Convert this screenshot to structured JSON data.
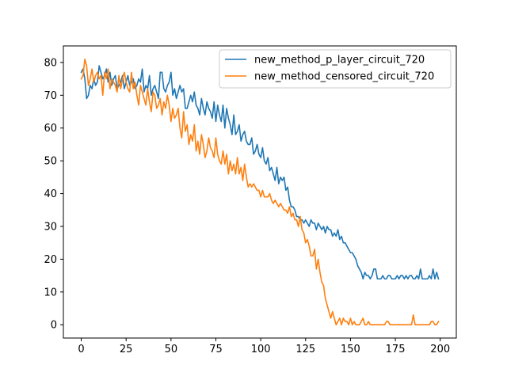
{
  "chart_data": {
    "type": "line",
    "title": "",
    "xlabel": "",
    "ylabel": "",
    "xlim": [
      -9.95,
      208.95
    ],
    "ylim": [
      -4.05,
      85.05
    ],
    "xticks": [
      0,
      25,
      50,
      75,
      100,
      125,
      150,
      175,
      200
    ],
    "yticks": [
      0,
      10,
      20,
      30,
      40,
      50,
      60,
      70,
      80
    ],
    "grid": false,
    "legend_position": "top-right",
    "series": [
      {
        "name": "new_method_p_layer_circuit_720",
        "color": "#1f77b4",
        "x": [
          0,
          1,
          2,
          3,
          4,
          5,
          6,
          7,
          8,
          9,
          10,
          11,
          12,
          13,
          14,
          15,
          16,
          17,
          18,
          19,
          20,
          21,
          22,
          23,
          24,
          25,
          26,
          27,
          28,
          29,
          30,
          31,
          32,
          33,
          34,
          35,
          36,
          37,
          38,
          39,
          40,
          41,
          42,
          43,
          44,
          45,
          46,
          47,
          48,
          49,
          50,
          51,
          52,
          53,
          54,
          55,
          56,
          57,
          58,
          59,
          60,
          61,
          62,
          63,
          64,
          65,
          66,
          67,
          68,
          69,
          70,
          71,
          72,
          73,
          74,
          75,
          76,
          77,
          78,
          79,
          80,
          81,
          82,
          83,
          84,
          85,
          86,
          87,
          88,
          89,
          90,
          91,
          92,
          93,
          94,
          95,
          96,
          97,
          98,
          99,
          100,
          101,
          102,
          103,
          104,
          105,
          106,
          107,
          108,
          109,
          110,
          111,
          112,
          113,
          114,
          115,
          116,
          117,
          118,
          119,
          120,
          121,
          122,
          123,
          124,
          125,
          126,
          127,
          128,
          129,
          130,
          131,
          132,
          133,
          134,
          135,
          136,
          137,
          138,
          139,
          140,
          141,
          142,
          143,
          144,
          145,
          146,
          147,
          148,
          149,
          150,
          151,
          152,
          153,
          154,
          155,
          156,
          157,
          158,
          159,
          160,
          161,
          162,
          163,
          164,
          165,
          166,
          167,
          168,
          169,
          170,
          171,
          172,
          173,
          174,
          175,
          176,
          177,
          178,
          179,
          180,
          181,
          182,
          183,
          184,
          185,
          186,
          187,
          188,
          189,
          190,
          191,
          192,
          193,
          194,
          195,
          196,
          197,
          198,
          199
        ],
        "y": [
          77,
          78,
          75,
          69,
          70,
          73,
          72,
          75,
          73,
          74,
          79,
          77,
          75,
          76,
          78,
          74,
          77,
          73,
          75,
          76,
          72,
          73,
          74,
          76,
          72,
          74,
          76,
          73,
          74,
          75,
          72,
          73,
          75,
          74,
          78,
          71,
          73,
          72,
          76,
          70,
          72,
          73,
          71,
          69,
          77,
          77,
          72,
          71,
          73,
          74,
          77,
          70,
          72,
          69,
          71,
          73,
          71,
          72,
          66,
          66,
          68,
          70,
          68,
          71,
          67,
          66,
          64,
          69,
          66,
          64,
          68,
          66,
          65,
          63,
          68,
          62,
          67,
          64,
          62,
          67,
          60,
          66,
          63,
          61,
          58,
          64,
          58,
          59,
          61,
          56,
          58,
          59,
          56,
          55,
          55,
          57,
          52,
          53,
          55,
          52,
          51,
          54,
          50,
          49,
          51,
          47,
          48,
          46,
          44,
          48,
          43,
          45,
          44,
          45,
          41,
          42,
          38,
          36,
          36,
          35,
          33,
          33,
          32,
          32,
          31,
          32,
          31,
          30,
          32,
          31,
          31,
          29,
          31,
          30,
          29,
          30,
          28,
          30,
          29,
          29,
          27,
          28,
          27,
          29,
          26,
          27,
          25,
          25,
          24,
          23,
          22,
          22,
          21,
          20,
          18,
          17,
          16,
          14,
          16,
          15,
          15,
          14,
          15,
          17,
          17,
          14,
          14,
          14,
          15,
          14,
          14,
          15,
          15,
          14,
          14,
          14,
          15,
          14,
          15,
          15,
          14,
          15,
          14,
          15,
          15,
          14,
          14,
          15,
          14,
          17,
          14,
          14,
          14,
          14,
          15,
          14,
          17,
          14,
          16,
          14
        ]
      },
      {
        "name": "new_method_censored_circuit_720",
        "color": "#ff7f0e",
        "x": [
          0,
          1,
          2,
          3,
          4,
          5,
          6,
          7,
          8,
          9,
          10,
          11,
          12,
          13,
          14,
          15,
          16,
          17,
          18,
          19,
          20,
          21,
          22,
          23,
          24,
          25,
          26,
          27,
          28,
          29,
          30,
          31,
          32,
          33,
          34,
          35,
          36,
          37,
          38,
          39,
          40,
          41,
          42,
          43,
          44,
          45,
          46,
          47,
          48,
          49,
          50,
          51,
          52,
          53,
          54,
          55,
          56,
          57,
          58,
          59,
          60,
          61,
          62,
          63,
          64,
          65,
          66,
          67,
          68,
          69,
          70,
          71,
          72,
          73,
          74,
          75,
          76,
          77,
          78,
          79,
          80,
          81,
          82,
          83,
          84,
          85,
          86,
          87,
          88,
          89,
          90,
          91,
          92,
          93,
          94,
          95,
          96,
          97,
          98,
          99,
          100,
          101,
          102,
          103,
          104,
          105,
          106,
          107,
          108,
          109,
          110,
          111,
          112,
          113,
          114,
          115,
          116,
          117,
          118,
          119,
          120,
          121,
          122,
          123,
          124,
          125,
          126,
          127,
          128,
          129,
          130,
          131,
          132,
          133,
          134,
          135,
          136,
          137,
          138,
          139,
          140,
          141,
          142,
          143,
          144,
          145,
          146,
          147,
          148,
          149,
          150,
          151,
          152,
          153,
          154,
          155,
          156,
          157,
          158,
          159,
          160,
          161,
          162,
          163,
          164,
          165,
          166,
          167,
          168,
          169,
          170,
          171,
          172,
          173,
          174,
          175,
          176,
          177,
          178,
          179,
          180,
          181,
          182,
          183,
          184,
          185,
          186,
          187,
          188,
          189,
          190,
          191,
          192,
          193,
          194,
          195,
          196,
          197,
          198,
          199
        ],
        "y": [
          75,
          76,
          81,
          79,
          73,
          75,
          78,
          74,
          76,
          77,
          75,
          76,
          70,
          77,
          75,
          78,
          72,
          75,
          74,
          73,
          71,
          76,
          72,
          75,
          77,
          74,
          72,
          71,
          77,
          72,
          74,
          70,
          67,
          73,
          71,
          69,
          67,
          72,
          68,
          65,
          71,
          70,
          66,
          67,
          69,
          64,
          68,
          66,
          70,
          67,
          62,
          66,
          63,
          64,
          66,
          60,
          57,
          65,
          59,
          61,
          55,
          58,
          56,
          61,
          53,
          56,
          52,
          58,
          55,
          51,
          53,
          57,
          54,
          53,
          51,
          57,
          52,
          50,
          49,
          53,
          49,
          52,
          46,
          50,
          47,
          49,
          46,
          51,
          46,
          48,
          44,
          49,
          45,
          42,
          43,
          42,
          43,
          42,
          41,
          41,
          39,
          41,
          39,
          39,
          39,
          40,
          38,
          37,
          38,
          37,
          36,
          37,
          36,
          35,
          35,
          34,
          36,
          33,
          34,
          32,
          32,
          30,
          33,
          29,
          28,
          25,
          26,
          24,
          21,
          21,
          23,
          17,
          20,
          16,
          13,
          12,
          8,
          6,
          4,
          2,
          4,
          2,
          0,
          1,
          2,
          0,
          2,
          1,
          1,
          0,
          2,
          0,
          1,
          0,
          0,
          0,
          1,
          2,
          0,
          0,
          1,
          0,
          0,
          0,
          0,
          0,
          0,
          0,
          0,
          0,
          1,
          1,
          0,
          0,
          0,
          0,
          0,
          0,
          0,
          0,
          0,
          0,
          0,
          0,
          0,
          3,
          0,
          0,
          0,
          0,
          0,
          0,
          0,
          0,
          0,
          1,
          1,
          0,
          0,
          1
        ]
      }
    ]
  }
}
